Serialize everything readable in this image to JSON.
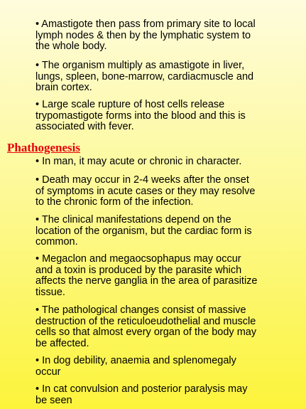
{
  "top_bullets": [
    {
      "lines": [
        "•  Amastigote then pass from primary site to local",
        "lymph nodes & then by the lymphatic system to",
        "the whole body."
      ]
    },
    {
      "lines": [
        "•  The organism multiply as amastigote in liver,",
        "lungs, spleen, bone-marrow, cardiacmuscle and",
        "brain cortex."
      ]
    },
    {
      "lines": [
        "• Large scale rupture of host cells release",
        "trypomastigote forms into the blood and this is",
        "associated with fever."
      ]
    }
  ],
  "section": {
    "heading": "Phathogenesis",
    "bullets": [
      {
        "lines": [
          "• In man, it may acute or chronic in character."
        ]
      },
      {
        "lines": [
          "• Death may occur in 2-4 weeks after the onset",
          "of symptoms in acute cases or they may resolve",
          "to the chronic form of the infection."
        ]
      },
      {
        "lines": [
          "• The clinical manifestations depend on the",
          "location of the organism, but the cardiac form is",
          "common."
        ]
      },
      {
        "lines": [
          "• Megaclon and megaocsophapus may occur",
          "and a toxin is produced by the parasite which",
          "affects the nerve ganglia in the area of parasitize",
          "tissue."
        ]
      },
      {
        "lines": [
          "• The pathological changes consist of massive",
          "destruction of the reticuloeudothelial and muscle",
          "cells so that almost every organ of the body may",
          "be affected."
        ]
      },
      {
        "lines": [
          "• In dog debility, anaemia and splenomegaly",
          "occur"
        ]
      },
      {
        "lines": [
          "• In cat convulsion and posterior paralysis may",
          "be seen"
        ]
      }
    ]
  }
}
